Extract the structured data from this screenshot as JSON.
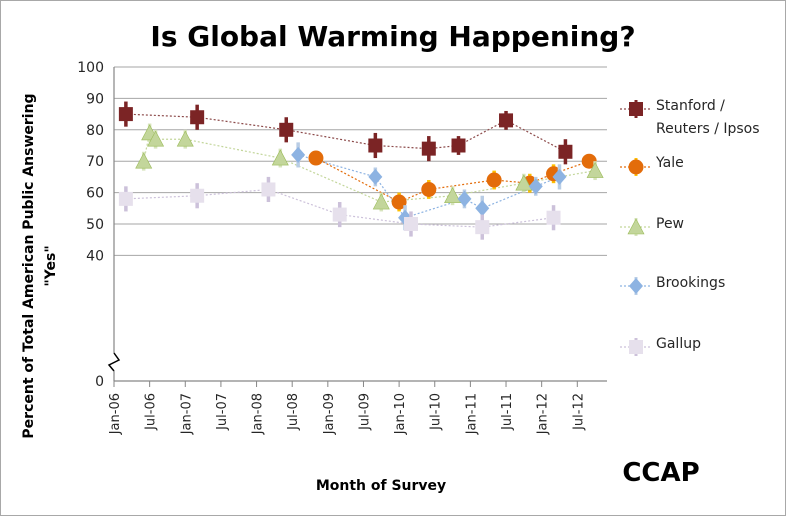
{
  "chart_data": {
    "type": "scatter",
    "title": "Is Global Warming Happening?",
    "xlabel": "Month of Survey",
    "ylabel_lines": [
      "Percent of Total American Public Answering",
      "\"Yes\""
    ],
    "ylim": [
      0,
      100
    ],
    "yticks": [
      0,
      40,
      50,
      60,
      70,
      80,
      90,
      100
    ],
    "x_domain": [
      "2006-01",
      "2012-12"
    ],
    "x_ticks": [
      {
        "label": "Jan-06",
        "x": "2006-01"
      },
      {
        "label": "Jul-06",
        "x": "2006-07"
      },
      {
        "label": "Jan-07",
        "x": "2007-01"
      },
      {
        "label": "Jul-07",
        "x": "2007-07"
      },
      {
        "label": "Jan-08",
        "x": "2008-01"
      },
      {
        "label": "Jul-08",
        "x": "2008-07"
      },
      {
        "label": "Jan-09",
        "x": "2009-01"
      },
      {
        "label": "Jul-09",
        "x": "2009-07"
      },
      {
        "label": "Jan-10",
        "x": "2010-01"
      },
      {
        "label": "Jul-10",
        "x": "2010-07"
      },
      {
        "label": "Jan-11",
        "x": "2011-01"
      },
      {
        "label": "Jul-11",
        "x": "2011-07"
      },
      {
        "label": "Jan-12",
        "x": "2012-01"
      },
      {
        "label": "Jul-12",
        "x": "2012-07"
      }
    ],
    "grid": true,
    "legend_position": "right",
    "series": [
      {
        "name": "Stanford / Reuters / Ipsos",
        "marker": "square",
        "color": "#7b2425",
        "err_color": "#7b2425",
        "line_color": "#8c4a4a",
        "points": [
          {
            "x": "2006-03",
            "y": 85,
            "err": 4
          },
          {
            "x": "2007-03",
            "y": 84,
            "err": 4
          },
          {
            "x": "2008-06",
            "y": 80,
            "err": 4
          },
          {
            "x": "2009-09",
            "y": 75,
            "err": 4
          },
          {
            "x": "2010-06",
            "y": 74,
            "err": 4
          },
          {
            "x": "2010-11",
            "y": 75,
            "err": 3
          },
          {
            "x": "2011-07",
            "y": 83,
            "err": 3
          },
          {
            "x": "2012-05",
            "y": 73,
            "err": 4
          }
        ]
      },
      {
        "name": "Yale",
        "marker": "circle",
        "color": "#e36c0a",
        "err_color": "#ffc000",
        "line_color": "#e36c0a",
        "points": [
          {
            "x": "2008-11",
            "y": 71,
            "err": 2
          },
          {
            "x": "2010-01",
            "y": 57,
            "err": 3
          },
          {
            "x": "2010-06",
            "y": 61,
            "err": 3
          },
          {
            "x": "2011-05",
            "y": 64,
            "err": 3
          },
          {
            "x": "2011-11",
            "y": 63,
            "err": 3
          },
          {
            "x": "2012-03",
            "y": 66,
            "err": 3
          },
          {
            "x": "2012-09",
            "y": 70,
            "err": 2
          }
        ]
      },
      {
        "name": "Pew",
        "marker": "triangle",
        "color": "#c3d69b",
        "err_color": "#d7e4bd",
        "line_color": "#c3d69b",
        "points": [
          {
            "x": "2006-06",
            "y": 70,
            "err": 3
          },
          {
            "x": "2006-07",
            "y": 79,
            "err": 3
          },
          {
            "x": "2006-08",
            "y": 77,
            "err": 3
          },
          {
            "x": "2007-01",
            "y": 77,
            "err": 3
          },
          {
            "x": "2008-05",
            "y": 71,
            "err": 3
          },
          {
            "x": "2009-10",
            "y": 57,
            "err": 3
          },
          {
            "x": "2010-10",
            "y": 59,
            "err": 3
          },
          {
            "x": "2011-10",
            "y": 63,
            "err": 3
          },
          {
            "x": "2012-10",
            "y": 67,
            "err": 3
          }
        ]
      },
      {
        "name": "Brookings",
        "marker": "diamond",
        "color": "#8db3e2",
        "err_color": "#b9cde5",
        "line_color": "#8db3e2",
        "points": [
          {
            "x": "2008-08",
            "y": 72,
            "err": 4
          },
          {
            "x": "2009-09",
            "y": 65,
            "err": 3
          },
          {
            "x": "2010-02",
            "y": 52,
            "err": 4
          },
          {
            "x": "2010-12",
            "y": 58,
            "err": 3
          },
          {
            "x": "2011-03",
            "y": 55,
            "err": 4
          },
          {
            "x": "2011-12",
            "y": 62,
            "err": 3
          },
          {
            "x": "2012-04",
            "y": 65,
            "err": 4
          }
        ]
      },
      {
        "name": "Gallup",
        "marker": "square",
        "color": "#e6e0ec",
        "err_color": "#ccc1da",
        "line_color": "#ccc1da",
        "points": [
          {
            "x": "2006-03",
            "y": 58,
            "err": 4
          },
          {
            "x": "2007-03",
            "y": 59,
            "err": 4
          },
          {
            "x": "2008-03",
            "y": 61,
            "err": 4
          },
          {
            "x": "2009-03",
            "y": 53,
            "err": 4
          },
          {
            "x": "2010-03",
            "y": 50,
            "err": 4
          },
          {
            "x": "2011-03",
            "y": 49,
            "err": 4
          },
          {
            "x": "2012-03",
            "y": 52,
            "err": 4
          }
        ]
      }
    ]
  },
  "watermark": "CCAP",
  "legend": {
    "stanford_lines": [
      "Stanford /",
      "Reuters / Ipsos"
    ],
    "yale": "Yale",
    "pew": "Pew",
    "brookings": "Brookings",
    "gallup": "Gallup"
  }
}
